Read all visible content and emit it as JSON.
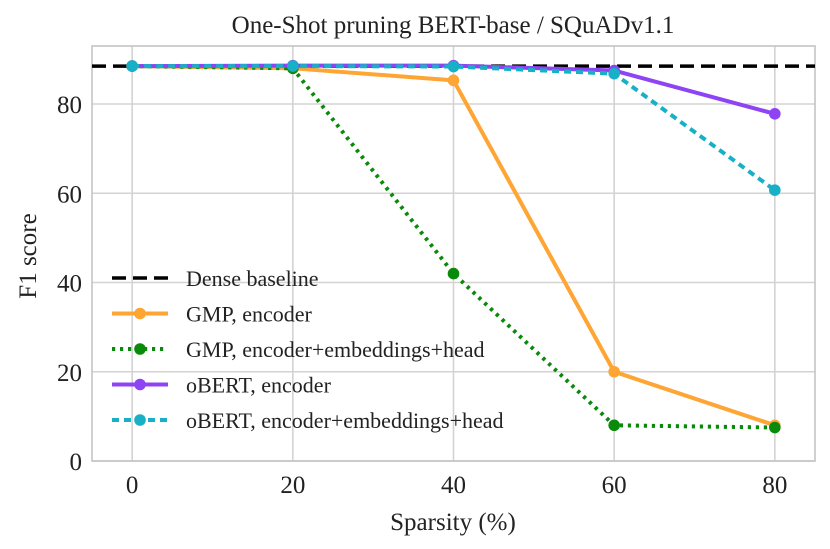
{
  "chart_data": {
    "type": "line",
    "title": "One-Shot pruning BERT-base / SQuADv1.1",
    "xlabel": "Sparsity (%)",
    "ylabel": "F1 score",
    "xlim": [
      -5,
      85
    ],
    "ylim": [
      0,
      93
    ],
    "xticks": [
      0,
      20,
      40,
      60,
      80
    ],
    "yticks": [
      0,
      20,
      40,
      60,
      80
    ],
    "grid": true,
    "legend_position": "lower-left",
    "baseline": {
      "name": "Dense baseline",
      "value": 88.5,
      "color": "#000000"
    },
    "x": [
      0,
      20,
      40,
      60,
      80
    ],
    "series": [
      {
        "name": "GMP, encoder",
        "color": "#ffa533",
        "style": "solid",
        "values": [
          88.5,
          88.0,
          85.3,
          20.0,
          8.0
        ]
      },
      {
        "name": "GMP, encoder+embeddings+head",
        "color": "#0a8a0a",
        "style": "dotted",
        "values": [
          88.5,
          88.0,
          42.0,
          8.0,
          7.5
        ]
      },
      {
        "name": "oBERT, encoder",
        "color": "#8e44f5",
        "style": "solid",
        "values": [
          88.5,
          88.6,
          88.6,
          87.5,
          77.8
        ]
      },
      {
        "name": "oBERT, encoder+embeddings+head",
        "color": "#17b0c6",
        "style": "dashed",
        "values": [
          88.5,
          88.5,
          88.4,
          86.8,
          60.7
        ]
      }
    ]
  }
}
